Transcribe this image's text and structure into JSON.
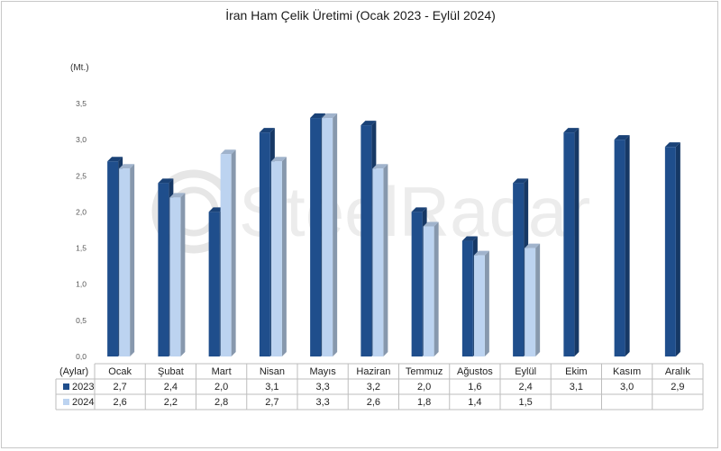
{
  "chart_data": {
    "type": "bar",
    "title": "İran Ham Çelik Üretimi (Ocak 2023 - Eylül 2024)",
    "ylabel": "(Mt.)",
    "xlabel": "(Aylar)",
    "ylim": [
      0,
      3.5
    ],
    "yticks": [
      "0,0",
      "0,5",
      "1,0",
      "1,5",
      "2,0",
      "2,5",
      "3,0",
      "3,5"
    ],
    "categories": [
      "Ocak",
      "Şubat",
      "Mart",
      "Nisan",
      "Mayıs",
      "Haziran",
      "Temmuz",
      "Ağustos",
      "Eylül",
      "Ekim",
      "Kasım",
      "Aralık"
    ],
    "series": [
      {
        "name": "2023",
        "color": "#1f4e8c",
        "values": [
          2.7,
          2.4,
          2.0,
          3.1,
          3.3,
          3.2,
          2.0,
          1.6,
          2.4,
          3.1,
          3.0,
          2.9
        ],
        "labels": [
          "2,7",
          "2,4",
          "2,0",
          "3,1",
          "3,3",
          "3,2",
          "2,0",
          "1,6",
          "2,4",
          "3,1",
          "3,0",
          "2,9"
        ]
      },
      {
        "name": "2024",
        "color": "#bcd3f0",
        "values": [
          2.6,
          2.2,
          2.8,
          2.7,
          3.3,
          2.6,
          1.8,
          1.4,
          1.5,
          null,
          null,
          null
        ],
        "labels": [
          "2,6",
          "2,2",
          "2,8",
          "2,7",
          "3,3",
          "2,6",
          "1,8",
          "1,4",
          "1,5",
          "",
          "",
          ""
        ]
      }
    ],
    "grid": false,
    "legend": "data-table",
    "watermark": "SteelRadar"
  }
}
